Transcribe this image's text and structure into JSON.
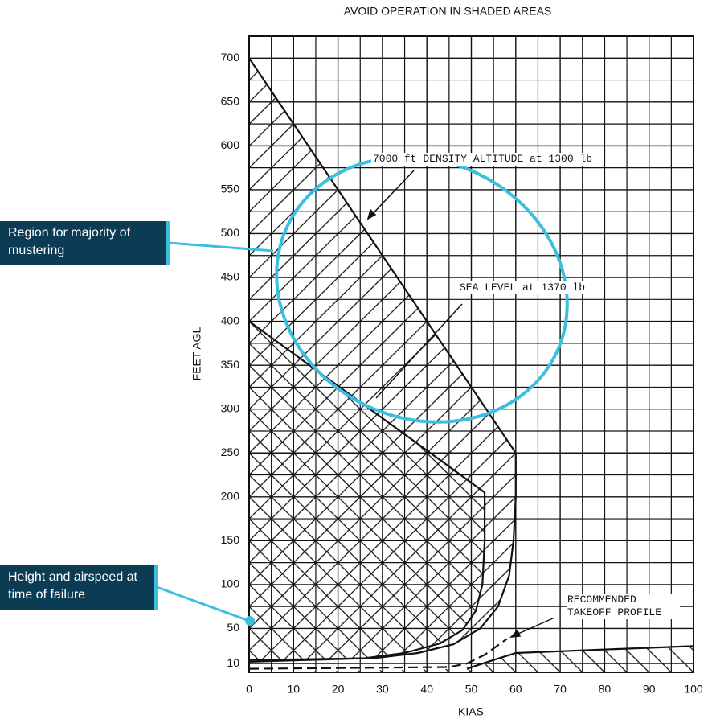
{
  "chart_data": {
    "type": "line",
    "title": "AVOID OPERATION IN SHADED AREAS",
    "xlabel": "KIAS",
    "ylabel": "FEET AGL",
    "xlim": [
      0,
      100
    ],
    "ylim": [
      0,
      725
    ],
    "xticks": [
      0,
      10,
      20,
      30,
      40,
      50,
      60,
      70,
      80,
      90,
      100
    ],
    "yticks": [
      10,
      50,
      100,
      150,
      200,
      250,
      300,
      350,
      400,
      450,
      500,
      550,
      600,
      650,
      700
    ],
    "grid": true,
    "series": [
      {
        "name": "7000 ft DENSITY ALTITUDE at 1300 lb",
        "color": "#111111",
        "fill": "hatch-forward",
        "x": [
          0,
          60,
          60,
          59.5,
          58.5,
          56,
          52,
          46,
          38,
          28,
          0
        ],
        "values": [
          700,
          250,
          200,
          150,
          110,
          75,
          50,
          32,
          22,
          16,
          14
        ]
      },
      {
        "name": "SEA LEVEL at 1370 lb",
        "color": "#111111",
        "fill": "hatch-back",
        "x": [
          0,
          53,
          53,
          52.5,
          51,
          48,
          43,
          35,
          26,
          0
        ],
        "values": [
          400,
          205,
          150,
          100,
          70,
          48,
          33,
          22,
          16,
          12
        ]
      },
      {
        "name": "RECOMMENDED TAKEOFF PROFILE",
        "color": "#111111",
        "dash": true,
        "x": [
          0,
          45,
          49,
          53,
          58
        ],
        "values": [
          4,
          6,
          10,
          20,
          38
        ]
      },
      {
        "name": null,
        "color": "#111111",
        "fill": "hatch-back",
        "x": [
          49,
          55,
          60,
          70,
          80,
          90,
          100
        ],
        "values": [
          4,
          14,
          22,
          24,
          26,
          28,
          30
        ]
      }
    ],
    "annotations": [
      "Region for majority of mustering",
      "Height and airspeed at time of failure"
    ]
  }
}
